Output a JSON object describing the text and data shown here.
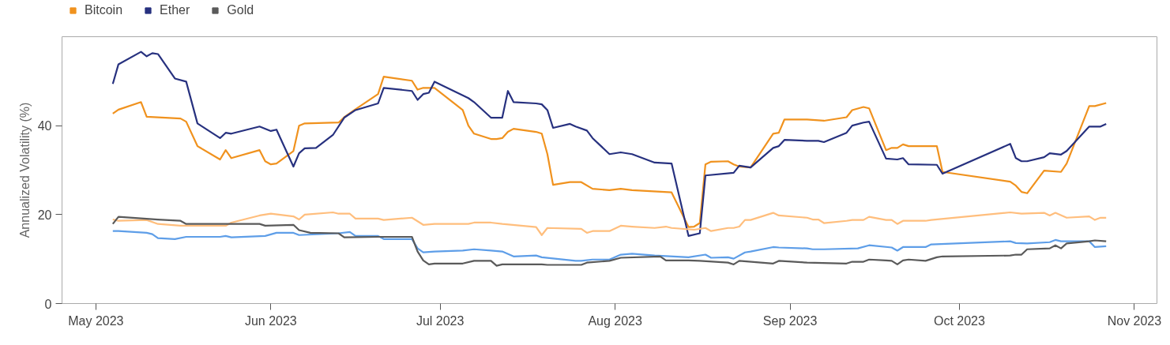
{
  "chart_data": {
    "type": "line",
    "ylabel": "Annualized Volatility (%)",
    "xlim": [
      "2023-04-25",
      "2023-11-05"
    ],
    "ylim": [
      0,
      60
    ],
    "yticks": [
      0,
      20,
      40
    ],
    "xticks": [
      {
        "value": "2023-05-01",
        "label": "May 2023"
      },
      {
        "value": "2023-06-01",
        "label": "Jun 2023"
      },
      {
        "value": "2023-07-01",
        "label": "Jul 2023"
      },
      {
        "value": "2023-08-01",
        "label": "Aug 2023"
      },
      {
        "value": "2023-09-01",
        "label": "Sep 2023"
      },
      {
        "value": "2023-10-01",
        "label": "Oct 2023"
      },
      {
        "value": "2023-11-01",
        "label": "Nov 2023"
      }
    ],
    "grid": false,
    "legend": "top",
    "marker": "none",
    "line_style": "solid",
    "series": [
      {
        "name": "Bitcoin",
        "color": "#f0921e",
        "x": [
          "2023-05-04",
          "2023-05-05",
          "2023-05-09",
          "2023-05-10",
          "2023-05-16",
          "2023-05-17",
          "2023-05-19",
          "2023-05-23",
          "2023-05-24",
          "2023-05-25",
          "2023-05-30",
          "2023-05-31",
          "2023-06-01",
          "2023-06-02",
          "2023-06-05",
          "2023-06-06",
          "2023-06-07",
          "2023-06-13",
          "2023-06-14",
          "2023-06-16",
          "2023-06-20",
          "2023-06-21",
          "2023-06-26",
          "2023-06-27",
          "2023-06-28",
          "2023-06-30",
          "2023-07-05",
          "2023-07-06",
          "2023-07-07",
          "2023-07-10",
          "2023-07-11",
          "2023-07-12",
          "2023-07-13",
          "2023-07-14",
          "2023-07-18",
          "2023-07-19",
          "2023-07-20",
          "2023-07-21",
          "2023-07-24",
          "2023-07-26",
          "2023-07-28",
          "2023-07-31",
          "2023-08-02",
          "2023-08-04",
          "2023-08-11",
          "2023-08-14",
          "2023-08-15",
          "2023-08-16",
          "2023-08-17",
          "2023-08-18",
          "2023-08-21",
          "2023-08-22",
          "2023-08-23",
          "2023-08-25",
          "2023-08-29",
          "2023-08-30",
          "2023-08-31",
          "2023-09-04",
          "2023-09-07",
          "2023-09-11",
          "2023-09-12",
          "2023-09-14",
          "2023-09-15",
          "2023-09-18",
          "2023-09-19",
          "2023-09-20",
          "2023-09-21",
          "2023-09-22",
          "2023-09-27",
          "2023-09-28",
          "2023-10-10",
          "2023-10-11",
          "2023-10-12",
          "2023-10-13",
          "2023-10-16",
          "2023-10-19",
          "2023-10-20",
          "2023-10-24",
          "2023-10-25",
          "2023-10-27"
        ],
        "values": [
          42.7,
          43.6,
          45.3,
          42.0,
          41.6,
          40.9,
          35.4,
          32.4,
          34.5,
          32.7,
          34.5,
          32.0,
          31.3,
          31.5,
          34.3,
          40.0,
          40.5,
          40.7,
          41.9,
          43.7,
          47.1,
          51.0,
          50.1,
          48.1,
          48.5,
          48.5,
          43.5,
          40.0,
          38.2,
          37.0,
          37.0,
          37.2,
          38.6,
          39.3,
          38.6,
          38.2,
          33.6,
          26.7,
          27.3,
          27.3,
          25.8,
          25.5,
          25.8,
          25.5,
          25.0,
          17.2,
          17.3,
          18.1,
          31.3,
          31.9,
          32.0,
          31.3,
          30.8,
          30.6,
          38.2,
          38.4,
          41.4,
          41.4,
          41.1,
          41.9,
          43.5,
          44.2,
          43.9,
          34.5,
          35.0,
          35.0,
          35.8,
          35.4,
          35.4,
          29.6,
          27.4,
          26.5,
          25.1,
          24.8,
          29.9,
          29.6,
          31.5,
          44.4,
          44.4,
          45.1
        ]
      },
      {
        "name": "Ether",
        "color": "#27317f",
        "x": [
          "2023-05-04",
          "2023-05-05",
          "2023-05-09",
          "2023-05-10",
          "2023-05-11",
          "2023-05-12",
          "2023-05-15",
          "2023-05-17",
          "2023-05-19",
          "2023-05-23",
          "2023-05-24",
          "2023-05-25",
          "2023-05-30",
          "2023-06-01",
          "2023-06-02",
          "2023-06-05",
          "2023-06-06",
          "2023-06-07",
          "2023-06-09",
          "2023-06-12",
          "2023-06-14",
          "2023-06-16",
          "2023-06-20",
          "2023-06-21",
          "2023-06-26",
          "2023-06-27",
          "2023-06-28",
          "2023-06-29",
          "2023-06-30",
          "2023-07-06",
          "2023-07-07",
          "2023-07-10",
          "2023-07-12",
          "2023-07-13",
          "2023-07-14",
          "2023-07-18",
          "2023-07-19",
          "2023-07-20",
          "2023-07-21",
          "2023-07-24",
          "2023-07-25",
          "2023-07-27",
          "2023-07-28",
          "2023-07-31",
          "2023-08-02",
          "2023-08-04",
          "2023-08-08",
          "2023-08-11",
          "2023-08-14",
          "2023-08-16",
          "2023-08-17",
          "2023-08-22",
          "2023-08-23",
          "2023-08-25",
          "2023-08-29",
          "2023-08-30",
          "2023-08-31",
          "2023-09-04",
          "2023-09-06",
          "2023-09-07",
          "2023-09-11",
          "2023-09-12",
          "2023-09-14",
          "2023-09-15",
          "2023-09-18",
          "2023-09-20",
          "2023-09-21",
          "2023-09-22",
          "2023-09-27",
          "2023-09-28",
          "2023-10-10",
          "2023-10-11",
          "2023-10-12",
          "2023-10-13",
          "2023-10-16",
          "2023-10-17",
          "2023-10-19",
          "2023-10-20",
          "2023-10-24",
          "2023-10-26",
          "2023-10-27"
        ],
        "values": [
          49.4,
          53.8,
          56.6,
          55.6,
          56.3,
          56.1,
          50.6,
          49.9,
          40.5,
          37.2,
          38.4,
          38.2,
          39.8,
          38.8,
          39.1,
          30.8,
          33.8,
          34.9,
          35.0,
          37.9,
          41.8,
          43.5,
          45.0,
          48.5,
          47.8,
          45.8,
          47.1,
          47.4,
          49.9,
          46.2,
          45.3,
          41.8,
          41.8,
          47.8,
          45.3,
          45.0,
          44.8,
          43.5,
          39.5,
          40.4,
          39.8,
          38.9,
          37.2,
          33.6,
          34.0,
          33.6,
          31.7,
          31.5,
          15.2,
          15.8,
          28.8,
          29.4,
          31.0,
          30.6,
          35.0,
          35.4,
          36.8,
          36.6,
          36.6,
          36.3,
          38.4,
          40.0,
          40.7,
          40.9,
          32.6,
          32.4,
          32.7,
          31.3,
          31.2,
          29.2,
          35.9,
          32.7,
          32.0,
          32.0,
          32.9,
          33.8,
          33.5,
          34.3,
          39.8,
          39.8,
          40.4
        ]
      },
      {
        "color": "#ffbe7d",
        "x": [
          "2023-05-04",
          "2023-05-05",
          "2023-05-10",
          "2023-05-12",
          "2023-05-16",
          "2023-05-24",
          "2023-05-25",
          "2023-05-30",
          "2023-06-01",
          "2023-06-05",
          "2023-06-06",
          "2023-06-07",
          "2023-06-12",
          "2023-06-13",
          "2023-06-15",
          "2023-06-16",
          "2023-06-20",
          "2023-06-21",
          "2023-06-26",
          "2023-06-28",
          "2023-06-30",
          "2023-07-06",
          "2023-07-07",
          "2023-07-10",
          "2023-07-12",
          "2023-07-18",
          "2023-07-19",
          "2023-07-20",
          "2023-07-26",
          "2023-07-27",
          "2023-07-28",
          "2023-07-31",
          "2023-08-02",
          "2023-08-04",
          "2023-08-08",
          "2023-08-10",
          "2023-08-11",
          "2023-08-15",
          "2023-08-17",
          "2023-08-18",
          "2023-08-21",
          "2023-08-22",
          "2023-08-23",
          "2023-08-24",
          "2023-08-25",
          "2023-08-29",
          "2023-08-30",
          "2023-09-04",
          "2023-09-05",
          "2023-09-06",
          "2023-09-07",
          "2023-09-11",
          "2023-09-12",
          "2023-09-14",
          "2023-09-15",
          "2023-09-18",
          "2023-09-19",
          "2023-09-20",
          "2023-09-21",
          "2023-09-25",
          "2023-09-26",
          "2023-10-10",
          "2023-10-12",
          "2023-10-16",
          "2023-10-17",
          "2023-10-18",
          "2023-10-20",
          "2023-10-24",
          "2023-10-25",
          "2023-10-26",
          "2023-10-27"
        ],
        "values": [
          18.9,
          18.6,
          18.8,
          17.9,
          17.5,
          17.5,
          18.2,
          19.8,
          20.2,
          19.6,
          18.9,
          20.0,
          20.5,
          20.2,
          20.2,
          19.1,
          19.1,
          18.8,
          19.3,
          17.7,
          17.9,
          17.9,
          18.2,
          18.2,
          17.9,
          17.2,
          15.4,
          17.0,
          16.8,
          15.9,
          16.3,
          16.3,
          17.5,
          17.3,
          17.0,
          17.3,
          17.0,
          16.6,
          17.0,
          16.3,
          17.0,
          17.0,
          17.3,
          18.8,
          18.8,
          20.4,
          19.8,
          19.3,
          18.9,
          18.9,
          18.1,
          18.6,
          18.8,
          18.8,
          19.5,
          18.8,
          18.8,
          17.9,
          18.6,
          18.6,
          18.8,
          20.5,
          20.2,
          20.4,
          19.8,
          20.4,
          19.3,
          19.6,
          18.8,
          19.3,
          19.3
        ]
      },
      {
        "color": "#5e9ee8",
        "x": [
          "2023-05-04",
          "2023-05-05",
          "2023-05-10",
          "2023-05-11",
          "2023-05-12",
          "2023-05-15",
          "2023-05-17",
          "2023-05-23",
          "2023-05-24",
          "2023-05-25",
          "2023-05-31",
          "2023-06-02",
          "2023-06-05",
          "2023-06-06",
          "2023-06-13",
          "2023-06-15",
          "2023-06-16",
          "2023-06-20",
          "2023-06-21",
          "2023-06-26",
          "2023-06-27",
          "2023-06-28",
          "2023-06-30",
          "2023-07-05",
          "2023-07-07",
          "2023-07-10",
          "2023-07-12",
          "2023-07-14",
          "2023-07-18",
          "2023-07-19",
          "2023-07-25",
          "2023-07-26",
          "2023-07-28",
          "2023-07-31",
          "2023-08-02",
          "2023-08-04",
          "2023-08-08",
          "2023-08-14",
          "2023-08-17",
          "2023-08-18",
          "2023-08-21",
          "2023-08-22",
          "2023-08-24",
          "2023-08-25",
          "2023-08-29",
          "2023-08-30",
          "2023-09-04",
          "2023-09-05",
          "2023-09-07",
          "2023-09-13",
          "2023-09-15",
          "2023-09-19",
          "2023-09-20",
          "2023-09-21",
          "2023-09-25",
          "2023-09-26",
          "2023-10-10",
          "2023-10-11",
          "2023-10-13",
          "2023-10-17",
          "2023-10-18",
          "2023-10-19",
          "2023-10-24",
          "2023-10-25",
          "2023-10-27"
        ],
        "values": [
          16.3,
          16.3,
          15.9,
          15.6,
          14.7,
          14.5,
          15.0,
          15.0,
          15.2,
          14.9,
          15.2,
          15.9,
          15.9,
          15.4,
          15.8,
          16.1,
          15.2,
          15.2,
          14.5,
          14.5,
          12.4,
          11.5,
          11.7,
          11.9,
          12.2,
          11.9,
          11.7,
          10.6,
          10.8,
          10.4,
          9.6,
          9.6,
          9.9,
          9.9,
          11.0,
          11.2,
          10.8,
          10.4,
          11.0,
          10.3,
          10.4,
          10.1,
          11.5,
          11.7,
          12.7,
          12.6,
          12.4,
          12.2,
          12.2,
          12.4,
          13.1,
          12.6,
          11.9,
          12.7,
          12.7,
          13.3,
          14.0,
          13.6,
          13.5,
          13.8,
          14.3,
          14.0,
          14.0,
          12.7,
          12.9
        ]
      },
      {
        "name": "Gold",
        "color": "#5a5a5a",
        "x": [
          "2023-05-04",
          "2023-05-05",
          "2023-05-12",
          "2023-05-16",
          "2023-05-17",
          "2023-05-30",
          "2023-05-31",
          "2023-06-05",
          "2023-06-06",
          "2023-06-08",
          "2023-06-13",
          "2023-06-14",
          "2023-06-20",
          "2023-06-26",
          "2023-06-27",
          "2023-06-28",
          "2023-06-29",
          "2023-06-30",
          "2023-07-05",
          "2023-07-07",
          "2023-07-10",
          "2023-07-11",
          "2023-07-12",
          "2023-07-19",
          "2023-07-20",
          "2023-07-26",
          "2023-07-27",
          "2023-07-31",
          "2023-08-02",
          "2023-08-09",
          "2023-08-10",
          "2023-08-14",
          "2023-08-16",
          "2023-08-21",
          "2023-08-22",
          "2023-08-23",
          "2023-08-29",
          "2023-08-30",
          "2023-09-04",
          "2023-09-11",
          "2023-09-12",
          "2023-09-14",
          "2023-09-15",
          "2023-09-18",
          "2023-09-19",
          "2023-09-20",
          "2023-09-21",
          "2023-09-22",
          "2023-09-25",
          "2023-09-27",
          "2023-09-28",
          "2023-10-10",
          "2023-10-11",
          "2023-10-12",
          "2023-10-13",
          "2023-10-17",
          "2023-10-18",
          "2023-10-19",
          "2023-10-20",
          "2023-10-24",
          "2023-10-25",
          "2023-10-27"
        ],
        "values": [
          17.9,
          19.5,
          18.9,
          18.6,
          17.9,
          17.9,
          17.5,
          17.7,
          16.5,
          15.9,
          15.8,
          14.9,
          15.0,
          15.0,
          11.7,
          9.7,
          8.8,
          9.0,
          9.0,
          9.6,
          9.6,
          8.5,
          8.8,
          8.8,
          8.7,
          8.7,
          9.2,
          9.6,
          10.3,
          10.6,
          9.7,
          9.7,
          9.6,
          9.2,
          8.8,
          9.6,
          9.0,
          9.6,
          9.2,
          9.0,
          9.4,
          9.4,
          9.9,
          9.7,
          9.6,
          8.8,
          9.7,
          9.9,
          9.6,
          10.4,
          10.6,
          10.8,
          11.0,
          11.0,
          12.2,
          12.4,
          13.1,
          12.4,
          13.5,
          14.0,
          14.2,
          14.0
        ]
      }
    ]
  }
}
